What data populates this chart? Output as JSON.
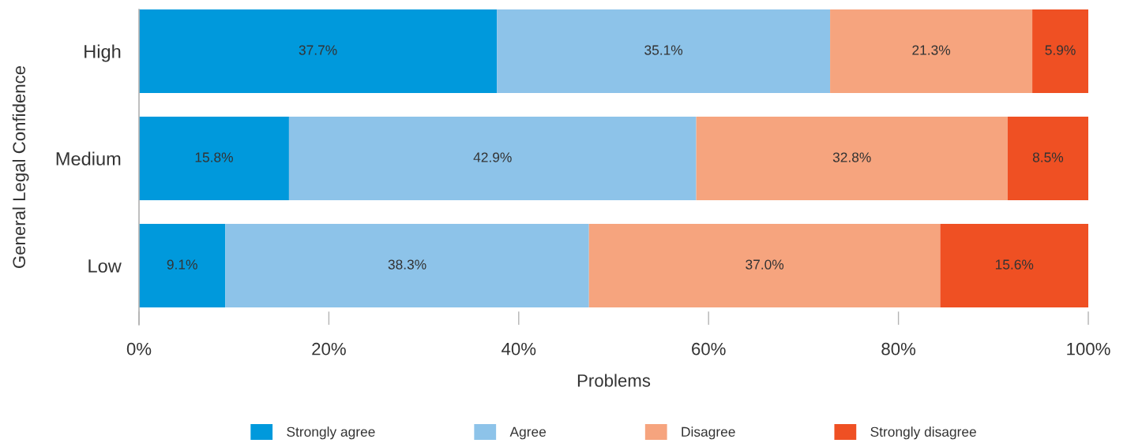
{
  "chart_data": {
    "type": "bar",
    "orientation": "horizontal",
    "stacked": true,
    "ylabel": "General Legal Confidence",
    "xlabel": "Problems",
    "categories": [
      "High",
      "Medium",
      "Low"
    ],
    "series": [
      {
        "name": "Strongly agree",
        "color": "#0099dc",
        "values": [
          37.7,
          15.8,
          9.1
        ],
        "value_labels": [
          "37.7%",
          "15.8%",
          "9.1%"
        ]
      },
      {
        "name": "Agree",
        "color": "#8dc3e9",
        "values": [
          35.1,
          42.9,
          38.3
        ],
        "value_labels": [
          "35.1%",
          "42.9%",
          "38.3%"
        ]
      },
      {
        "name": "Disagree",
        "color": "#f6a47e",
        "values": [
          21.3,
          32.8,
          37.0
        ],
        "value_labels": [
          "21.3%",
          "32.8%",
          "37.0%"
        ]
      },
      {
        "name": "Strongly disagree",
        "color": "#ef5023",
        "values": [
          5.9,
          8.5,
          15.6
        ],
        "value_labels": [
          "5.9%",
          "8.5%",
          "15.6%"
        ]
      }
    ],
    "xlim": [
      0,
      100
    ],
    "xticks": [
      {
        "value": 0,
        "label": "0%"
      },
      {
        "value": 20,
        "label": "20%"
      },
      {
        "value": 40,
        "label": "40%"
      },
      {
        "value": 60,
        "label": "60%"
      },
      {
        "value": 80,
        "label": "80%"
      },
      {
        "value": 100,
        "label": "100%"
      }
    ],
    "legend": "bottom"
  }
}
